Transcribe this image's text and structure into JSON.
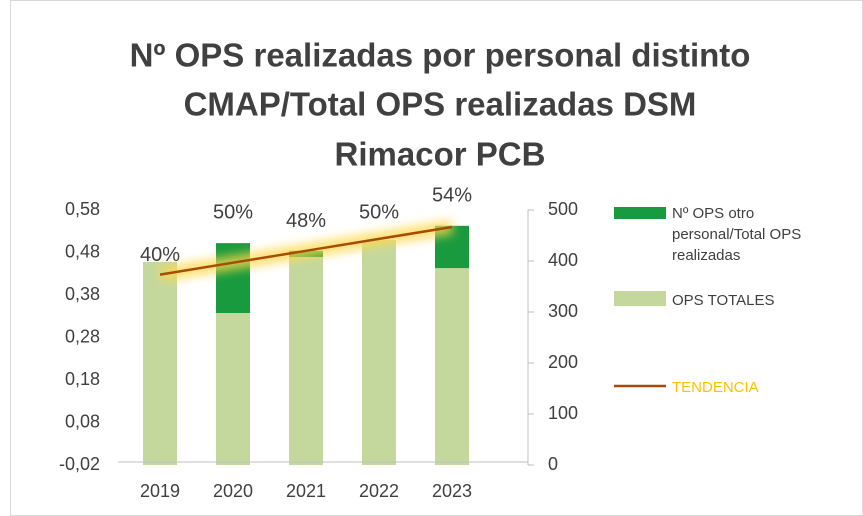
{
  "chart_data": {
    "type": "bar",
    "title": [
      "Nº OPS realizadas por personal distinto",
      "CMAP/Total OPS realizadas DSM",
      "Rimacor PCB"
    ],
    "categories": [
      "2019",
      "2020",
      "2021",
      "2022",
      "2023"
    ],
    "series": [
      {
        "name": "OPS TOTALES",
        "color": "#c4d89e",
        "axis": "y2",
        "values": [
          398,
          298,
          408,
          441,
          386
        ]
      },
      {
        "name": "Nº OPS otro personal/Total OPS realizadas",
        "color": "#1a9a3e",
        "axis": "y2",
        "values": [
          0,
          137,
          12,
          0,
          83
        ]
      }
    ],
    "ratio": {
      "values": [
        0.4,
        0.5,
        0.48,
        0.5,
        0.54
      ],
      "value_labels": [
        "40%",
        "50%",
        "48%",
        "50%",
        "54%"
      ]
    },
    "trend": {
      "name": "TENDENCIA",
      "color": "#a64b0a",
      "label_color": "#ffc000",
      "glow": "#ffd84a",
      "values": [
        0.428,
        0.456,
        0.484,
        0.512,
        0.54
      ]
    },
    "ylim": [
      -0.02,
      0.58
    ],
    "yticks": [
      {
        "value": -0.02,
        "label": "-0,02"
      },
      {
        "value": 0.08,
        "label": "0,08"
      },
      {
        "value": 0.18,
        "label": "0,18"
      },
      {
        "value": 0.28,
        "label": "0,28"
      },
      {
        "value": 0.38,
        "label": "0,38"
      },
      {
        "value": 0.48,
        "label": "0,48"
      },
      {
        "value": 0.58,
        "label": "0,58"
      }
    ],
    "y2lim": [
      0,
      500
    ],
    "y2ticks": [
      0,
      100,
      200,
      300,
      400,
      500
    ],
    "legend": "right",
    "grid": false
  }
}
